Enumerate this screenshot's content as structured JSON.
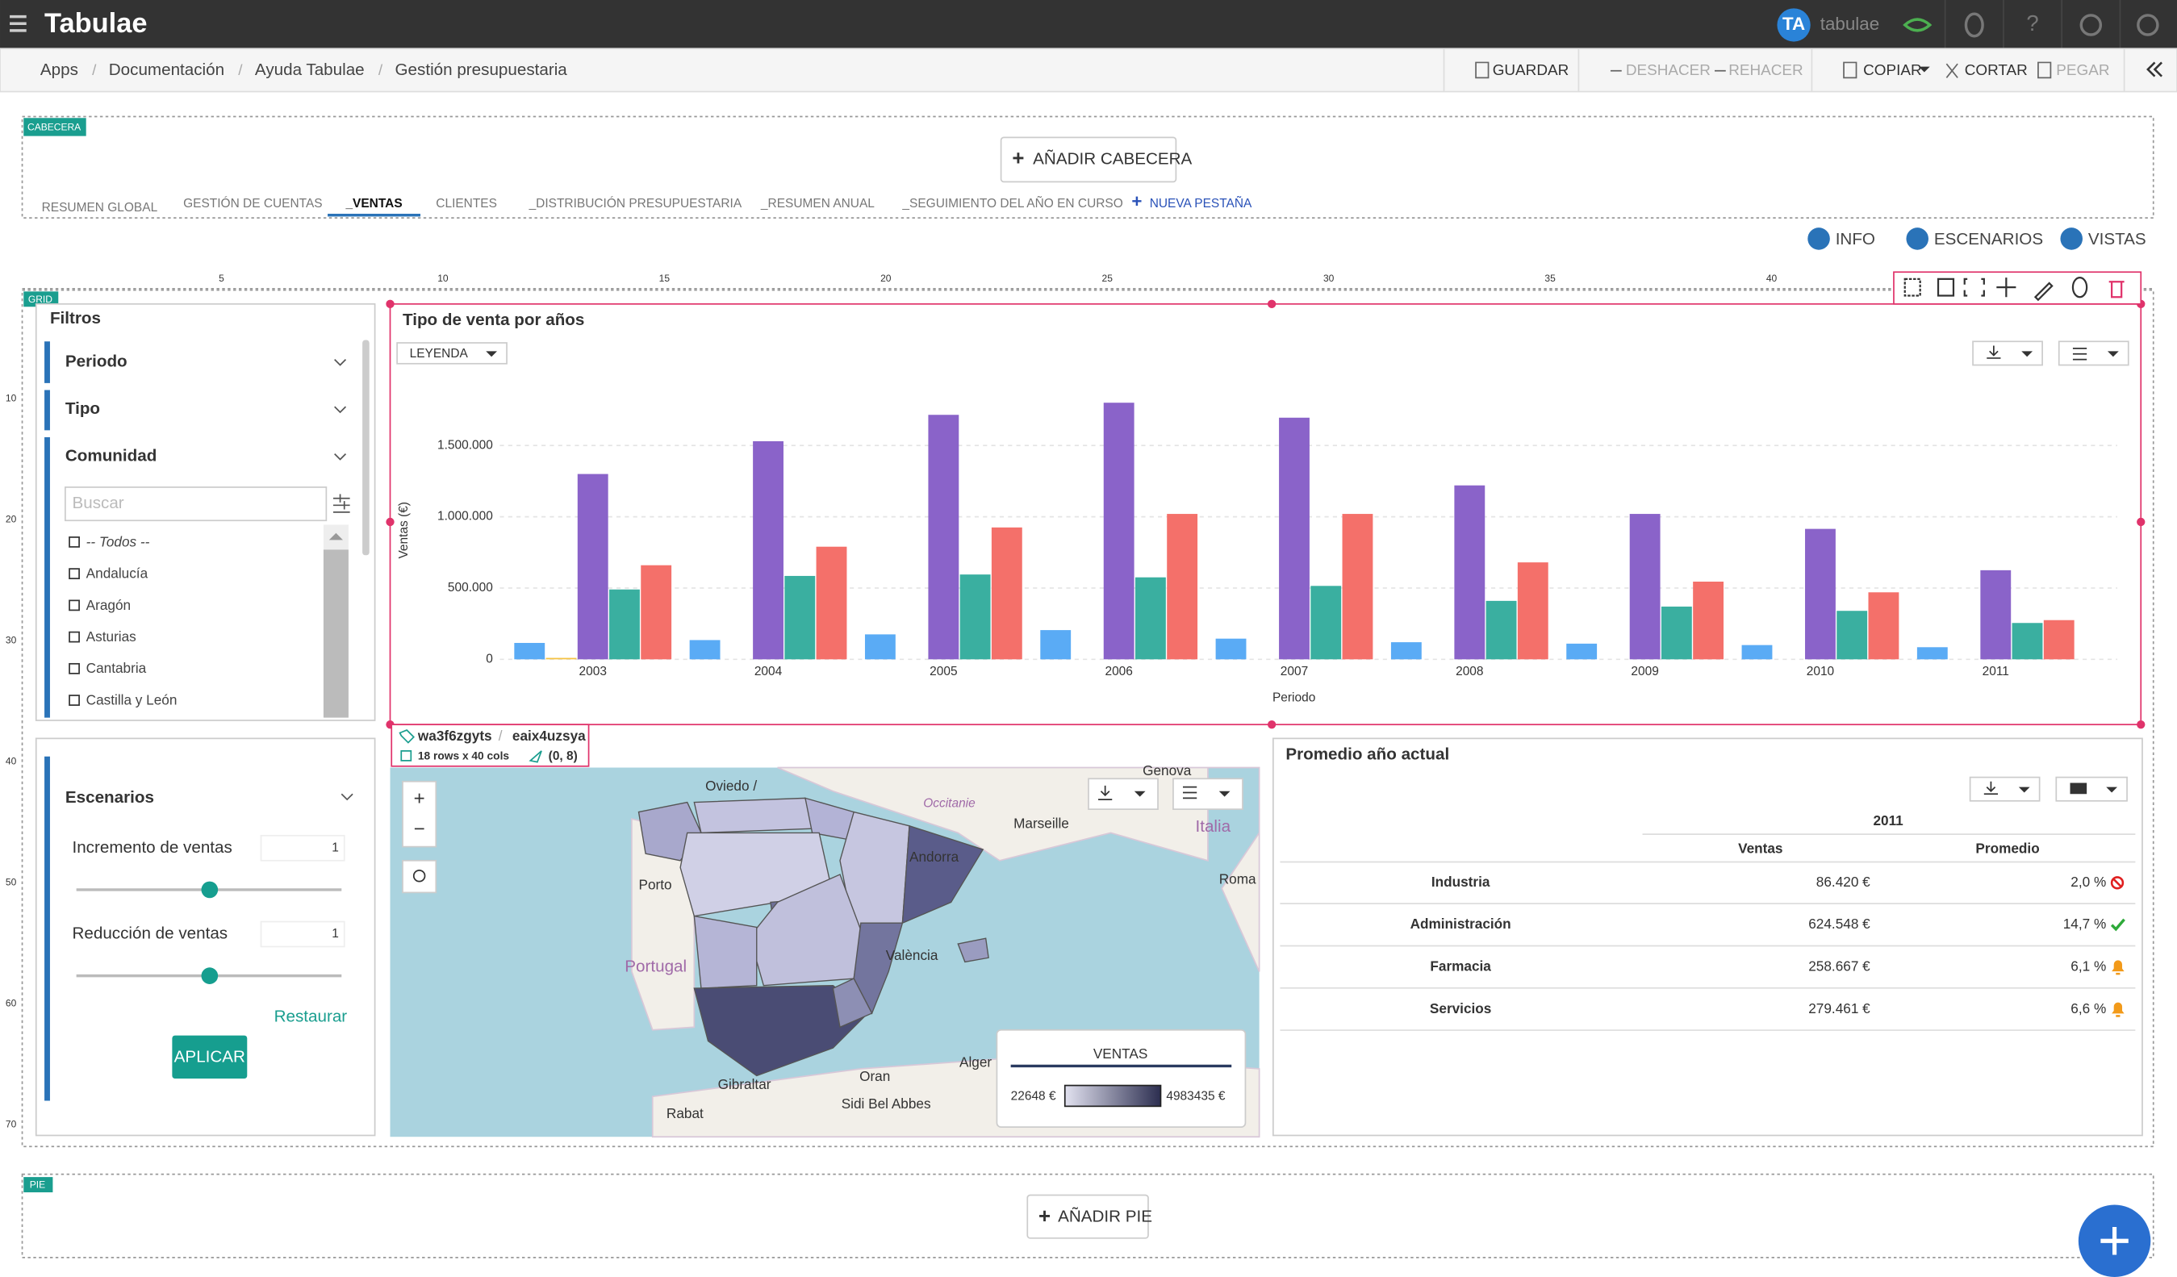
{
  "topbar": {
    "logo": "Tabulae",
    "avatar": "TA",
    "user": "tabulae"
  },
  "breadcrumb": [
    "Apps",
    "Documentación",
    "Ayuda Tabulae",
    "Gestión presupuestaria"
  ],
  "toolbar": {
    "save": "GUARDAR",
    "undo": "DESHACER",
    "redo": "REHACER",
    "copy": "COPIAR",
    "cut": "CORTAR",
    "paste": "PEGAR"
  },
  "header": {
    "tag": "CABECERA",
    "add": "AÑADIR CABECERA"
  },
  "tabs": [
    "RESUMEN GLOBAL",
    "GESTIÓN DE CUENTAS",
    "_VENTAS",
    "CLIENTES",
    "_DISTRIBUCIÓN PRESUPUESTARIA",
    "_RESUMEN ANUAL",
    "_SEGUIMIENTO DEL AÑO EN CURSO"
  ],
  "active_tab": 2,
  "new_tab": "NUEVA PESTAÑA",
  "view_buttons": [
    "INFO",
    "ESCENARIOS",
    "VISTAS"
  ],
  "ruler": {
    "top": [
      5,
      10,
      15,
      20,
      25,
      30,
      35,
      40
    ],
    "left": [
      10,
      20,
      30,
      40,
      50,
      60,
      70
    ]
  },
  "grid_tag": "GRID",
  "filters": {
    "title": "Filtros",
    "sections": [
      "Periodo",
      "Tipo",
      "Comunidad"
    ],
    "search_placeholder": "Buscar",
    "items": [
      "-- Todos --",
      "Andalucía",
      "Aragón",
      "Asturias",
      "Cantabria",
      "Castilla y León"
    ]
  },
  "scenarios": {
    "title": "Escenarios",
    "params": [
      {
        "label": "Incremento de ventas",
        "value": 1
      },
      {
        "label": "Reducción de ventas",
        "value": 1
      }
    ],
    "reset": "Restaurar",
    "apply": "APLICAR"
  },
  "chart_data": {
    "type": "bar",
    "title": "Tipo de venta por años",
    "x_label": "Periodo",
    "y_label": "Ventas (€)",
    "categories": [
      "2003",
      "2004",
      "2005",
      "2006",
      "2007",
      "2008",
      "2009",
      "2010",
      "2011"
    ],
    "series": [
      {
        "color": "#5aabf5",
        "values": [
          115000,
          135000,
          175000,
          205000,
          145000,
          120000,
          110000,
          100000,
          85000
        ]
      },
      {
        "color": "#f5c242",
        "values": [
          10000,
          null,
          null,
          null,
          null,
          null,
          null,
          null,
          null
        ]
      },
      {
        "color": "#8a63c9",
        "values": [
          1300000,
          1530000,
          1715000,
          1800000,
          1695000,
          1220000,
          1020000,
          915000,
          625000
        ]
      },
      {
        "color": "#3aafa0",
        "values": [
          490000,
          585000,
          595000,
          575000,
          515000,
          410000,
          370000,
          340000,
          255000
        ]
      },
      {
        "color": "#f4706a",
        "values": [
          660000,
          790000,
          925000,
          1020000,
          1020000,
          680000,
          545000,
          470000,
          275000
        ]
      }
    ],
    "ylim": [
      0,
      1850000
    ],
    "yticks": [
      0,
      {
        "value": 500000,
        "label": "500.000"
      },
      {
        "value": 1000000,
        "label": "1.000.000"
      },
      {
        "value": 1500000,
        "label": "1.500.000"
      }
    ],
    "grid": true
  },
  "legend_button": "LEYENDA",
  "widget_info": {
    "id": "wa3f6zgyts",
    "ref": "eaix4uzsya",
    "size": "18 rows x 40 cols",
    "position": "(0, 8)"
  },
  "map": {
    "zoom_in": "+",
    "zoom_out": "−",
    "labels": [
      "Oviedo /",
      "Porto",
      "Portugal",
      "València",
      "Marseille",
      "Italia",
      "Roma",
      "Occitanie",
      "Andorra",
      "Gibraltar",
      "Oran",
      "Alger",
      "Sidi Bel Abbes",
      "Rabat",
      "Genova"
    ],
    "legend": {
      "title": "VENTAS",
      "min": "22648 €",
      "max": "4983435 €"
    }
  },
  "table": {
    "title": "Promedio año actual",
    "year": "2011",
    "columns": [
      "Ventas",
      "Promedio"
    ],
    "rows": [
      [
        "Industria",
        "86.420 €",
        "2,0 %"
      ],
      [
        "Administración",
        "624.548 €",
        "14,7 %"
      ],
      [
        "Farmacia",
        "258.667 €",
        "6,1 %"
      ],
      [
        "Servicios",
        "279.461 €",
        "6,6 %"
      ]
    ],
    "status": [
      "bad",
      "good",
      "warn",
      "warn"
    ]
  },
  "footer": {
    "tag": "PIE",
    "add": "AÑADIR PIE"
  }
}
